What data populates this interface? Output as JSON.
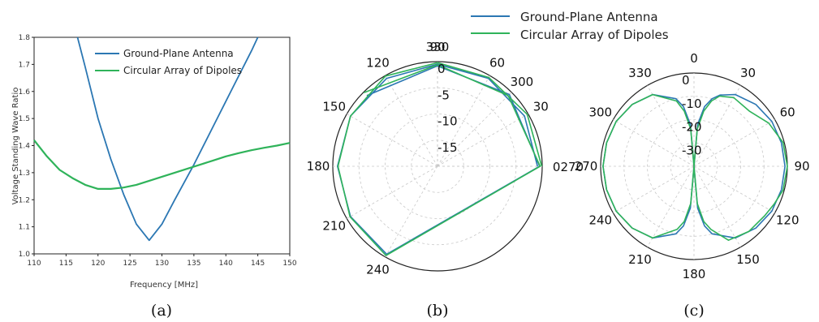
{
  "colors": {
    "blue": "#2b77b3",
    "green": "#2fb35a",
    "grid": "#c8c8c8",
    "frame": "#222222"
  },
  "legend_top": {
    "items": [
      "Ground-Plane Antenna",
      "Circular Array of Dipoles"
    ]
  },
  "captions": [
    "(a)",
    "(b)",
    "(c)"
  ],
  "chart_data": [
    {
      "type": "line",
      "xlabel": "Frequency [MHz]",
      "ylabel": "Voltage Standing Wave Ratio",
      "xlim": [
        110,
        150
      ],
      "ylim": [
        1.0,
        1.8
      ],
      "xticks": [
        "110",
        "115",
        "120",
        "125",
        "130",
        "135",
        "140",
        "145",
        "150"
      ],
      "yticks": [
        "1.0",
        "1.1",
        "1.2",
        "1.3",
        "1.4",
        "1.5",
        "1.6",
        "1.7",
        "1.8"
      ],
      "legend": "top-right",
      "grid": false,
      "series": [
        {
          "name": "Ground-Plane Antenna",
          "x": [
            116.8,
            118,
            120,
            122,
            124,
            126,
            128,
            130,
            132,
            135,
            138,
            141,
            144,
            145
          ],
          "y": [
            1.8,
            1.69,
            1.5,
            1.35,
            1.22,
            1.11,
            1.05,
            1.11,
            1.2,
            1.33,
            1.47,
            1.61,
            1.75,
            1.8
          ]
        },
        {
          "name": "Circular Array of Dipoles",
          "x": [
            110,
            112,
            114,
            116,
            118,
            120,
            122,
            124,
            126,
            128,
            130,
            132,
            134,
            136,
            138,
            140,
            142,
            144,
            146,
            148,
            150
          ],
          "y": [
            1.42,
            1.36,
            1.31,
            1.28,
            1.255,
            1.24,
            1.24,
            1.245,
            1.255,
            1.27,
            1.285,
            1.3,
            1.315,
            1.33,
            1.345,
            1.36,
            1.372,
            1.383,
            1.392,
            1.4,
            1.41
          ]
        }
      ]
    },
    {
      "type": "polar",
      "angle_ticks": [
        "0",
        "30",
        "60",
        "90",
        "120",
        "150",
        "180",
        "210",
        "240",
        "270",
        "300",
        "330"
      ],
      "merged_label_0_270": "0270",
      "radial_ticks": [
        "0",
        "-5",
        "-10",
        "-15"
      ],
      "rlim": [
        -20,
        0
      ],
      "series": [
        {
          "name": "Ground-Plane Antenna",
          "theta": [
            0,
            30,
            60,
            90,
            120,
            150,
            180,
            210,
            240,
            270,
            300,
            330,
            360
          ],
          "r": [
            -0.9,
            -0.8,
            -0.6,
            -0.5,
            -0.6,
            -0.8,
            -0.9,
            -0.8,
            -0.6,
            -0.5,
            -0.6,
            -0.8,
            -0.9
          ]
        },
        {
          "name": "Circular Array of Dipoles",
          "theta": [
            0,
            30,
            60,
            90,
            120,
            150,
            180,
            210,
            240,
            270,
            300,
            330,
            360
          ],
          "r": [
            -0.1,
            -0.2,
            -0.4,
            -0.2,
            -0.1,
            -0.8,
            -1.0,
            -0.7,
            -0.3,
            -0.4,
            -0.9,
            -0.6,
            -0.1
          ]
        }
      ]
    },
    {
      "type": "polar",
      "angle_ticks": [
        "0",
        "30",
        "60",
        "90",
        "120",
        "150",
        "180",
        "210",
        "240",
        "270",
        "300",
        "330"
      ],
      "radial_ticks": [
        "0",
        "-10",
        "-20",
        "-30"
      ],
      "rlim": [
        -40,
        0
      ],
      "series": [
        {
          "name": "Ground-Plane Antenna",
          "theta": [
            0,
            5,
            10,
            15,
            20,
            30,
            45,
            60,
            75,
            90,
            105,
            120,
            135,
            150,
            165,
            170,
            175,
            180,
            185,
            190,
            195,
            210,
            225,
            240,
            255,
            270,
            285,
            300,
            315,
            330,
            345,
            350,
            355,
            360
          ],
          "r": [
            -40,
            -22,
            -14,
            -10,
            -7.5,
            -4.5,
            -2.5,
            -1.5,
            -1.2,
            -1,
            -1.2,
            -1.5,
            -2.5,
            -4.5,
            -10,
            -14,
            -22,
            -40,
            -22,
            -14,
            -10,
            -4.5,
            -2.5,
            -1.5,
            -1.2,
            -1,
            -1.2,
            -1.5,
            -2.5,
            -4.5,
            -10,
            -14,
            -22,
            -40
          ]
        },
        {
          "name": "Circular Array of Dipoles",
          "theta": [
            0,
            5,
            10,
            15,
            20,
            30,
            45,
            60,
            75,
            90,
            105,
            115,
            125,
            140,
            155,
            165,
            170,
            175,
            180,
            185,
            190,
            195,
            210,
            225,
            240,
            255,
            270,
            285,
            300,
            315,
            330,
            345,
            350,
            355,
            360
          ],
          "r": [
            -40,
            -24,
            -16,
            -11,
            -8,
            -6,
            -6.5,
            -3,
            -0.5,
            0,
            -0.5,
            -2,
            -3,
            -3.5,
            -5,
            -12,
            -16,
            -24,
            -40,
            -24,
            -16,
            -12,
            -4.5,
            -2.5,
            -1.5,
            -1.2,
            -1,
            -1.2,
            -1.5,
            -2.5,
            -4.5,
            -11,
            -16,
            -24,
            -40
          ]
        }
      ]
    }
  ]
}
